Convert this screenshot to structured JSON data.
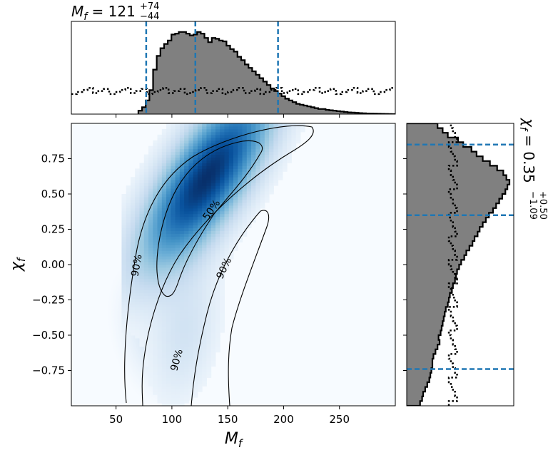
{
  "chart_data": [
    {
      "panel": "top-marginal",
      "type": "histogram",
      "title": "M_f = 121",
      "title_main": "M",
      "title_sub": "f",
      "title_value": " = 121",
      "title_sup": "+74",
      "title_lower": "−44",
      "xlim": [
        10,
        300
      ],
      "posterior": {
        "edges": [
          70,
          300
        ],
        "heights": [
          0.04,
          0.08,
          0.16,
          0.28,
          0.52,
          0.68,
          0.77,
          0.82,
          0.86,
          0.93,
          0.94,
          0.96,
          0.96,
          0.94,
          0.92,
          0.93,
          0.96,
          0.94,
          0.89,
          0.84,
          0.89,
          0.88,
          0.86,
          0.85,
          0.8,
          0.76,
          0.73,
          0.67,
          0.63,
          0.58,
          0.54,
          0.5,
          0.46,
          0.42,
          0.38,
          0.34,
          0.3,
          0.27,
          0.24,
          0.21,
          0.18,
          0.16,
          0.14,
          0.12,
          0.11,
          0.1,
          0.09,
          0.08,
          0.07,
          0.06,
          0.06,
          0.05,
          0.045,
          0.04,
          0.035,
          0.03,
          0.025,
          0.02,
          0.018,
          0.015,
          0.012,
          0.01,
          0.008,
          0.006,
          0.005,
          0.004,
          0.003,
          0.002,
          0.001,
          0.0
        ]
      },
      "prior_level": 0.27,
      "credible_lines": [
        77,
        121,
        195
      ],
      "line_color": "#1f77b4"
    },
    {
      "panel": "joint-density",
      "type": "heatmap",
      "xlabel": "M_f",
      "xlabel_main": "M",
      "xlabel_sub": "f",
      "ylabel": "χ_f",
      "ylabel_main": "χ",
      "ylabel_sub": "f",
      "xlim": [
        10,
        300
      ],
      "ylim": [
        -1,
        1
      ],
      "xticks": [
        50,
        100,
        150,
        200,
        250
      ],
      "yticks": [
        0.75,
        0.5,
        0.25,
        0.0,
        -0.25,
        -0.5,
        -0.75
      ],
      "ytick_labels": [
        "0.75",
        "0.50",
        "0.25",
        "0.00",
        "−0.25",
        "−0.50",
        "−0.75"
      ],
      "colormap": "Blues",
      "density_peak": [
        135,
        0.62
      ],
      "contours": [
        {
          "level": "50%",
          "label_at": [
            130,
            0.4
          ]
        },
        {
          "level": "90%",
          "label_at": [
            70,
            0.0
          ]
        },
        {
          "level": "90%",
          "label_at": [
            145,
            -0.03
          ]
        },
        {
          "level": "90%",
          "label_at": [
            105,
            -0.68
          ]
        }
      ]
    },
    {
      "panel": "right-marginal",
      "type": "histogram",
      "orientation": "horizontal",
      "title": "χ_f = 0.35",
      "title_main": "χ",
      "title_sub": "f",
      "title_value": " = 0.35",
      "title_sup": "+0.50",
      "title_lower": "−1.09",
      "ylim": [
        -1,
        1
      ],
      "posterior": {
        "edges": [
          -1,
          1
        ],
        "heights": [
          0.13,
          0.15,
          0.16,
          0.18,
          0.2,
          0.22,
          0.23,
          0.24,
          0.25,
          0.25,
          0.26,
          0.28,
          0.3,
          0.32,
          0.31,
          0.33,
          0.34,
          0.35,
          0.36,
          0.37,
          0.38,
          0.4,
          0.41,
          0.42,
          0.44,
          0.45,
          0.47,
          0.48,
          0.49,
          0.51,
          0.53,
          0.56,
          0.58,
          0.61,
          0.64,
          0.66,
          0.69,
          0.71,
          0.74,
          0.77,
          0.8,
          0.84,
          0.87,
          0.9,
          0.93,
          0.96,
          0.98,
          1.0,
          0.97,
          0.94,
          0.88,
          0.81,
          0.74,
          0.68,
          0.63,
          0.55,
          0.5,
          0.4,
          0.35,
          0.3
        ]
      },
      "prior_level": 0.45,
      "credible_lines": [
        -0.74,
        0.35,
        0.85
      ],
      "line_color": "#1f77b4"
    }
  ]
}
